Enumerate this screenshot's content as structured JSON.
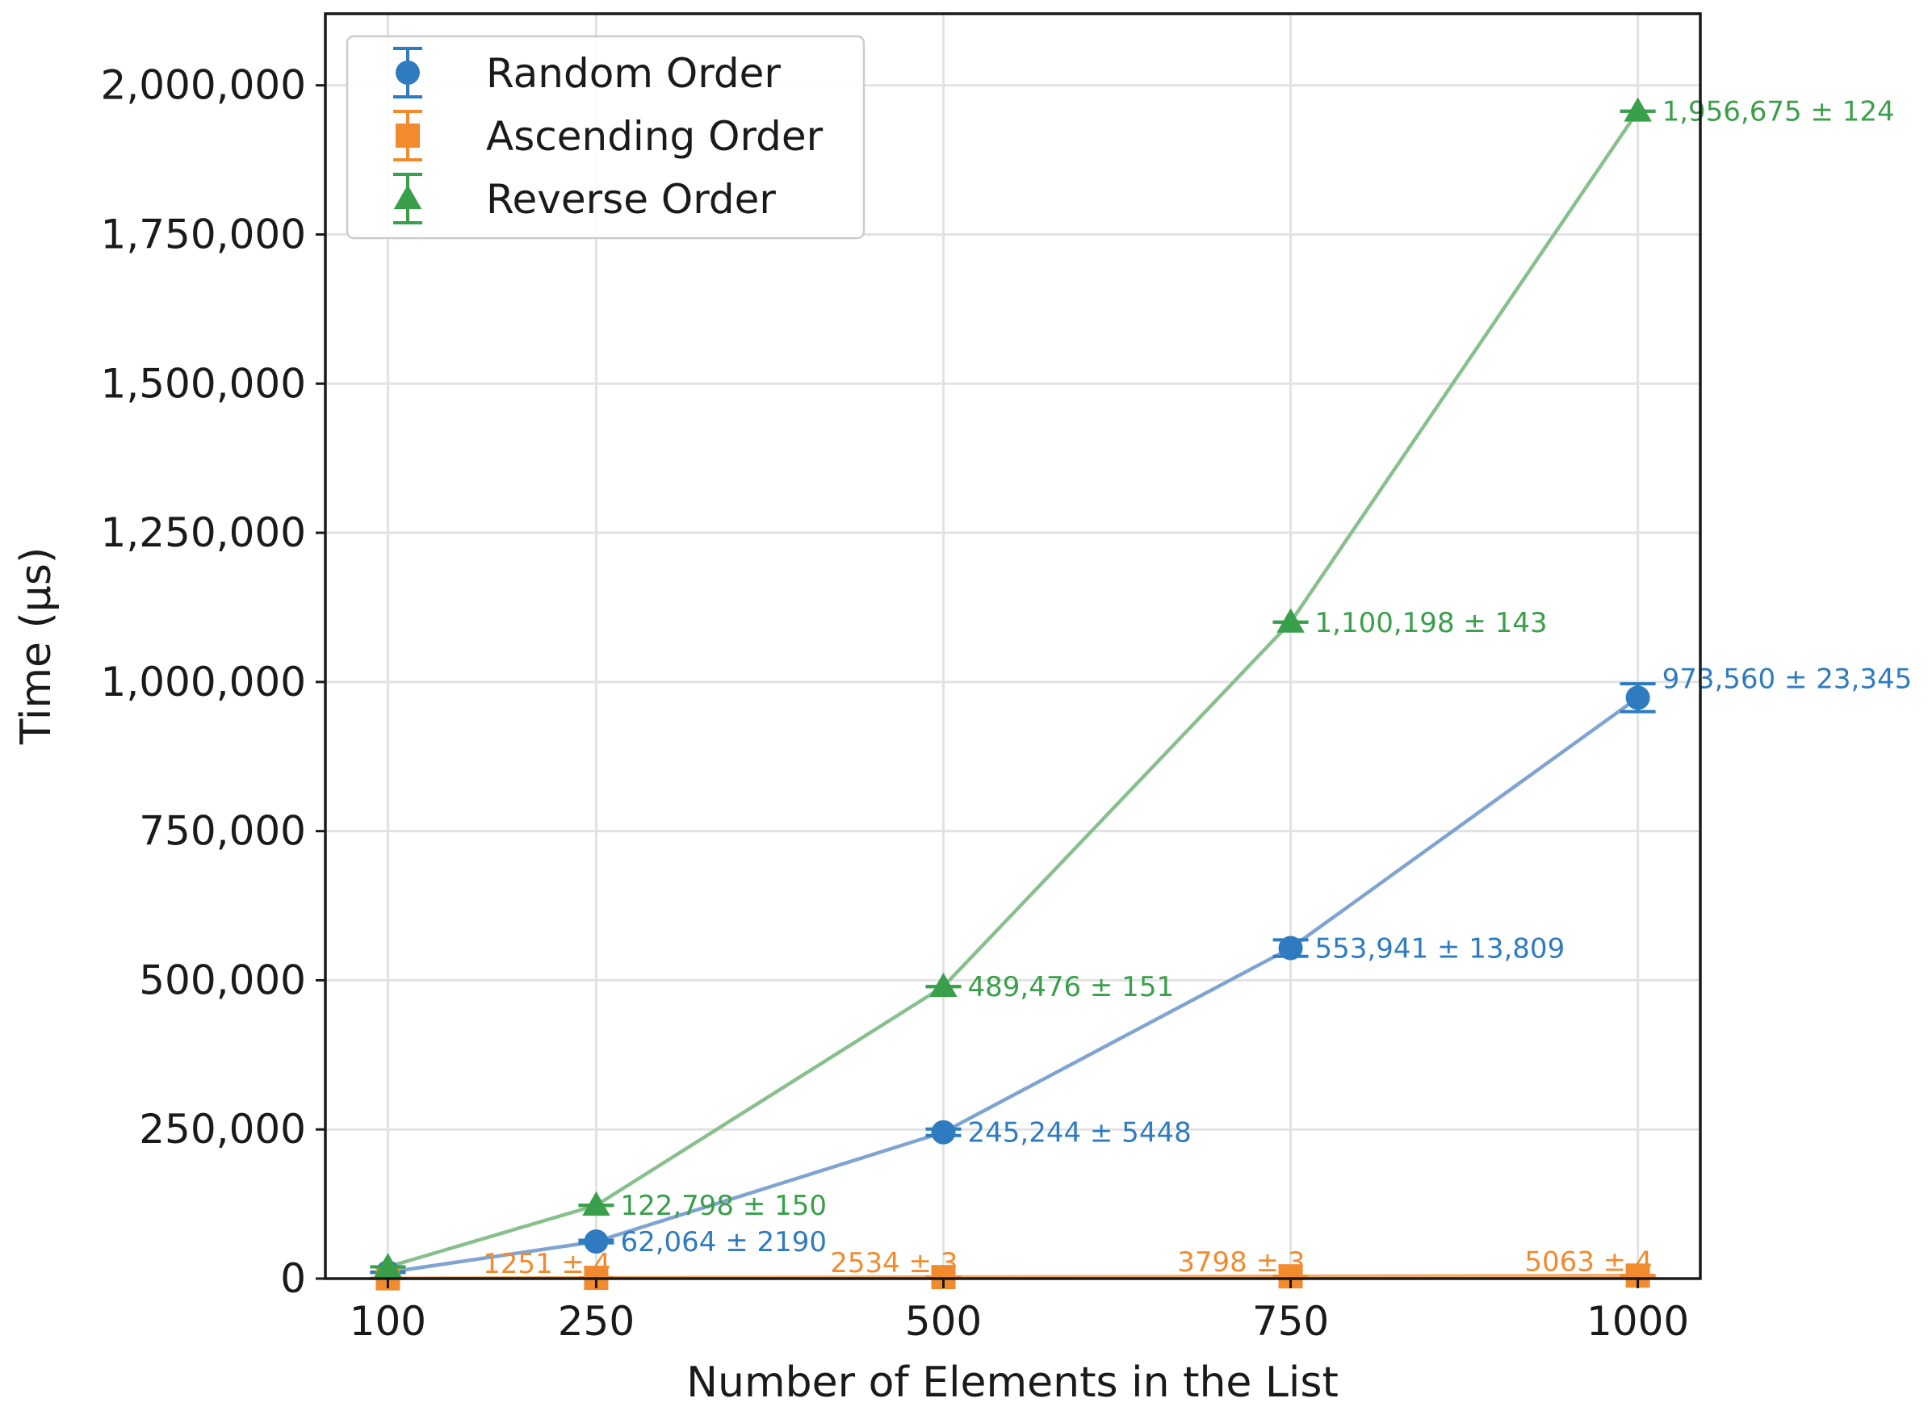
{
  "chart_data": {
    "type": "line",
    "title": "",
    "xlabel": "Number of Elements in the List",
    "ylabel": "Time (μs)",
    "x": [
      100,
      250,
      500,
      750,
      1000
    ],
    "x_tick_labels": [
      "100",
      "250",
      "500",
      "750",
      "1000"
    ],
    "xlim": [
      55,
      1045
    ],
    "ylim": [
      0,
      2120000
    ],
    "y_ticks": [
      0,
      250000,
      500000,
      750000,
      1000000,
      1250000,
      1500000,
      1750000,
      2000000
    ],
    "y_tick_labels": [
      "0",
      "250,000",
      "500,000",
      "750,000",
      "1,000,000",
      "1,250,000",
      "1,500,000",
      "1,750,000",
      "2,000,000"
    ],
    "grid": true,
    "legend_position": "top-left",
    "series": [
      {
        "name": "Random Order",
        "marker": "circle",
        "color": "#2f7bbf",
        "line_color": "#7fa4d2",
        "values": [
          10500,
          62064,
          245244,
          553941,
          973560
        ],
        "errors": [
          300,
          2190,
          5448,
          13809,
          23345
        ],
        "labels": [
          "",
          "62,064 ± 2190",
          "245,244 ± 5448",
          "553,941 ± 13,809",
          "973,560 ± 23,345"
        ]
      },
      {
        "name": "Ascending Order",
        "marker": "square",
        "color": "#f28a2e",
        "line_color": "#f5ad6e",
        "values": [
          505,
          1251,
          2534,
          3798,
          5063
        ],
        "errors": [
          2,
          4,
          3,
          3,
          4
        ],
        "labels": [
          "",
          "1251 ± 4",
          "2534 ± 3",
          "3798 ± 3",
          "5063 ± 4"
        ]
      },
      {
        "name": "Reverse Order",
        "marker": "triangle",
        "color": "#3a9f4a",
        "line_color": "#88c08d",
        "values": [
          19700,
          122798,
          489476,
          1100198,
          1956675
        ],
        "errors": [
          100,
          150,
          151,
          143,
          124
        ],
        "labels": [
          "",
          "122,798 ± 150",
          "489,476 ± 151",
          "1,100,198 ± 143",
          "1,956,675 ± 124"
        ]
      }
    ]
  }
}
